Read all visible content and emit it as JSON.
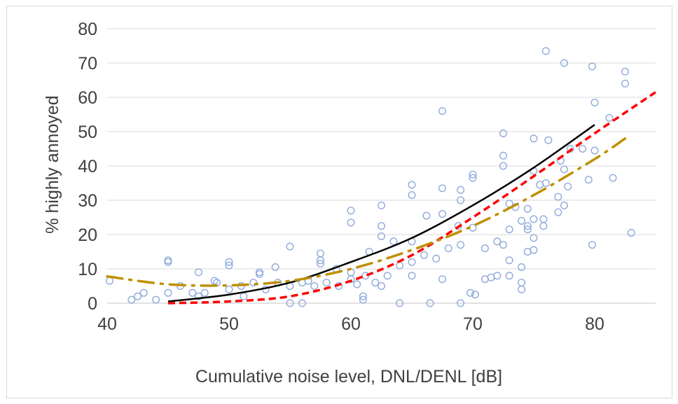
{
  "chart_data": {
    "type": "scatter",
    "title": "",
    "xlabel": "Cumulative noise level, DNL/DENL [dB]",
    "ylabel": "% highly annoyed",
    "xlim": [
      40,
      85
    ],
    "ylim": [
      0,
      80
    ],
    "x_ticks": [
      40,
      50,
      60,
      70,
      80
    ],
    "y_ticks": [
      0,
      10,
      20,
      30,
      40,
      50,
      60,
      70,
      80
    ],
    "grid": "horizontal",
    "legend": "none",
    "colors": {
      "points": "#8faadc",
      "solid": "#000000",
      "dashed": "#ff0000",
      "dashdot": "#bf9000",
      "grid": "#d9d9d9",
      "text": "#404040"
    },
    "scatter_points": [
      [
        40.2,
        6.5
      ],
      [
        42,
        1
      ],
      [
        42.5,
        2
      ],
      [
        43,
        3
      ],
      [
        44,
        1
      ],
      [
        45,
        12
      ],
      [
        45,
        12.5
      ],
      [
        45,
        3
      ],
      [
        46,
        5
      ],
      [
        47,
        3
      ],
      [
        47.5,
        9
      ],
      [
        47.5,
        2
      ],
      [
        48,
        3
      ],
      [
        48.8,
        6.5
      ],
      [
        49,
        6
      ],
      [
        50,
        12
      ],
      [
        50,
        11
      ],
      [
        50,
        4
      ],
      [
        51,
        5
      ],
      [
        51.2,
        2
      ],
      [
        52,
        6
      ],
      [
        52.5,
        9
      ],
      [
        52.5,
        8.5
      ],
      [
        53,
        4
      ],
      [
        53.8,
        10.5
      ],
      [
        54,
        6
      ],
      [
        55,
        16.5
      ],
      [
        55,
        0
      ],
      [
        55,
        5
      ],
      [
        56,
        0
      ],
      [
        56,
        6
      ],
      [
        56.5,
        6.5
      ],
      [
        57,
        5
      ],
      [
        57.5,
        14.5
      ],
      [
        57.5,
        12.5
      ],
      [
        57.5,
        11.5
      ],
      [
        58,
        6
      ],
      [
        58.8,
        10
      ],
      [
        59,
        5
      ],
      [
        60,
        27
      ],
      [
        60,
        23.5
      ],
      [
        60,
        9
      ],
      [
        60,
        7
      ],
      [
        60.5,
        5.5
      ],
      [
        61,
        2
      ],
      [
        61,
        1
      ],
      [
        61.2,
        8
      ],
      [
        61.5,
        15
      ],
      [
        62,
        6
      ],
      [
        62.5,
        28.5
      ],
      [
        62.5,
        22.5
      ],
      [
        62.5,
        19.5
      ],
      [
        62.5,
        5
      ],
      [
        63,
        8
      ],
      [
        63.5,
        18
      ],
      [
        64,
        11
      ],
      [
        64,
        0
      ],
      [
        65,
        34.5
      ],
      [
        65,
        31.5
      ],
      [
        65,
        18
      ],
      [
        65,
        12
      ],
      [
        65,
        8
      ],
      [
        66,
        14
      ],
      [
        66.2,
        25.5
      ],
      [
        66.5,
        0
      ],
      [
        67,
        13
      ],
      [
        67.5,
        56
      ],
      [
        67.5,
        33.5
      ],
      [
        67.5,
        26
      ],
      [
        67.5,
        7
      ],
      [
        68,
        16
      ],
      [
        68.8,
        22.5
      ],
      [
        69,
        33
      ],
      [
        69,
        30
      ],
      [
        69,
        17
      ],
      [
        69,
        0
      ],
      [
        69.8,
        3
      ],
      [
        70,
        37.5
      ],
      [
        70,
        36.5
      ],
      [
        70,
        22
      ],
      [
        70.2,
        2.5
      ],
      [
        71,
        16
      ],
      [
        71,
        7
      ],
      [
        71.5,
        7.5
      ],
      [
        72,
        18
      ],
      [
        72,
        8
      ],
      [
        72.5,
        49.5
      ],
      [
        72.5,
        43
      ],
      [
        72.5,
        40
      ],
      [
        72.5,
        17
      ],
      [
        73,
        29
      ],
      [
        73,
        21.5
      ],
      [
        73,
        12.5
      ],
      [
        73,
        8
      ],
      [
        73.5,
        28
      ],
      [
        74,
        24
      ],
      [
        74,
        10.5
      ],
      [
        74,
        6
      ],
      [
        74,
        4
      ],
      [
        74.5,
        27.5
      ],
      [
        74.5,
        22.5
      ],
      [
        74.5,
        21.5
      ],
      [
        74.5,
        15
      ],
      [
        75,
        48
      ],
      [
        75,
        38.5
      ],
      [
        75,
        24.5
      ],
      [
        75,
        19
      ],
      [
        75,
        15.5
      ],
      [
        75.5,
        34.5
      ],
      [
        75.8,
        22.5
      ],
      [
        75.8,
        24.5
      ],
      [
        76,
        73.5
      ],
      [
        76,
        35
      ],
      [
        76.2,
        47.5
      ],
      [
        77,
        31
      ],
      [
        77,
        26.5
      ],
      [
        77.2,
        41.5
      ],
      [
        77.5,
        70
      ],
      [
        77.5,
        39
      ],
      [
        77.5,
        28.5
      ],
      [
        77.8,
        34
      ],
      [
        78,
        45
      ],
      [
        79,
        45
      ],
      [
        79.5,
        36
      ],
      [
        79.8,
        69
      ],
      [
        79.8,
        17
      ],
      [
        80,
        58.5
      ],
      [
        80,
        44.5
      ],
      [
        81.2,
        54
      ],
      [
        81.5,
        36.5
      ],
      [
        82.5,
        67.5
      ],
      [
        82.5,
        64
      ],
      [
        83,
        20.5
      ]
    ],
    "series": [
      {
        "style": "solid",
        "x": [
          45,
          50,
          55,
          60,
          65,
          70,
          75,
          80
        ],
        "y": [
          0.5,
          2.5,
          6,
          12,
          19,
          28.5,
          39.5,
          52
        ]
      },
      {
        "style": "dashed",
        "x": [
          45,
          50,
          55,
          60,
          65,
          70,
          75,
          80,
          85
        ],
        "y": [
          0,
          0.5,
          2,
          6.5,
          14,
          25,
          37,
          49.5,
          61.5
        ]
      },
      {
        "style": "dashdot",
        "x": [
          40,
          45,
          50,
          55,
          60,
          65,
          70,
          75,
          80,
          82.5
        ],
        "y": [
          7.8,
          5.5,
          5.2,
          6.5,
          10,
          15.5,
          22.5,
          31.5,
          42,
          48
        ]
      }
    ]
  }
}
